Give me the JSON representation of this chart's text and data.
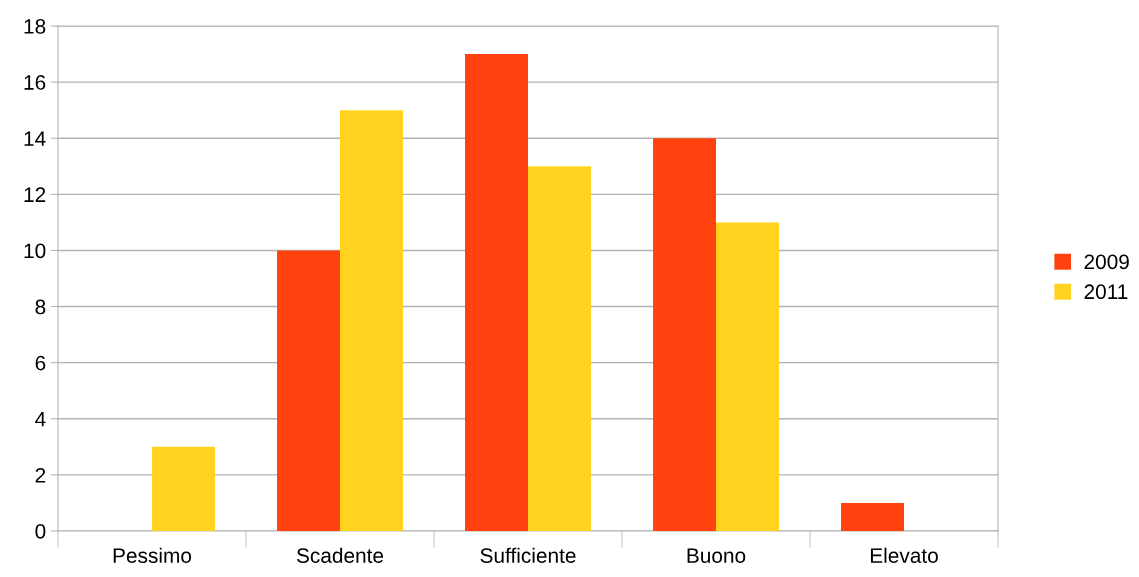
{
  "chart_data": {
    "type": "bar",
    "categories": [
      "Pessimo",
      "Scadente",
      "Sufficiente",
      "Buono",
      "Elevato"
    ],
    "series": [
      {
        "name": "2009",
        "color": "#ff420e",
        "values": [
          0,
          10,
          17,
          14,
          1
        ]
      },
      {
        "name": "2011",
        "color": "#ffd320",
        "values": [
          3,
          15,
          13,
          11,
          0
        ]
      }
    ],
    "ylim": [
      0,
      18
    ],
    "yticks": [
      0,
      2,
      4,
      6,
      8,
      10,
      12,
      14,
      16,
      18
    ],
    "grid": "y",
    "legend": "right"
  }
}
